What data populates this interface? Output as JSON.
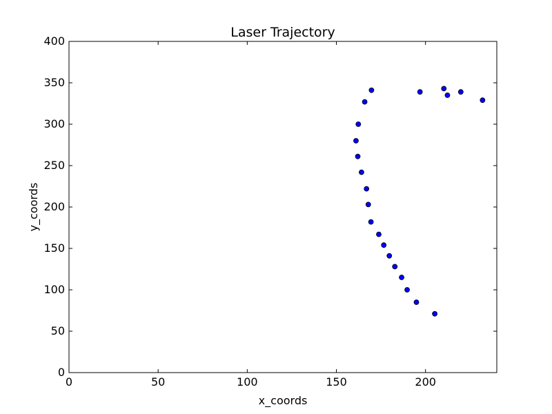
{
  "chart_data": {
    "type": "scatter",
    "title": "Laser Trajectory",
    "xlabel": "x_coords",
    "ylabel": "y_coords",
    "xlim": [
      0,
      240
    ],
    "ylim": [
      0,
      400
    ],
    "xticks": [
      "0",
      "50",
      "100",
      "150",
      "200"
    ],
    "yticks": [
      "0",
      "50",
      "100",
      "150",
      "200",
      "250",
      "300",
      "350",
      "400"
    ],
    "grid": false,
    "legend": "none",
    "marker_color": "#0000ff",
    "marker_edge_color": "#000000",
    "series": [
      {
        "points": [
          {
            "x": 205.2,
            "y": 71
          },
          {
            "x": 194.9,
            "y": 85
          },
          {
            "x": 189.7,
            "y": 100
          },
          {
            "x": 186.6,
            "y": 115
          },
          {
            "x": 182.8,
            "y": 128
          },
          {
            "x": 179.7,
            "y": 141
          },
          {
            "x": 176.6,
            "y": 154
          },
          {
            "x": 173.8,
            "y": 167
          },
          {
            "x": 169.4,
            "y": 182
          },
          {
            "x": 167.9,
            "y": 203
          },
          {
            "x": 166.9,
            "y": 222
          },
          {
            "x": 164.1,
            "y": 242
          },
          {
            "x": 162.0,
            "y": 261
          },
          {
            "x": 161.0,
            "y": 280
          },
          {
            "x": 162.3,
            "y": 300
          },
          {
            "x": 165.9,
            "y": 327
          },
          {
            "x": 169.7,
            "y": 341
          },
          {
            "x": 196.9,
            "y": 339
          },
          {
            "x": 210.3,
            "y": 343
          },
          {
            "x": 212.3,
            "y": 335
          },
          {
            "x": 219.8,
            "y": 339
          },
          {
            "x": 232.0,
            "y": 329
          }
        ]
      }
    ]
  }
}
